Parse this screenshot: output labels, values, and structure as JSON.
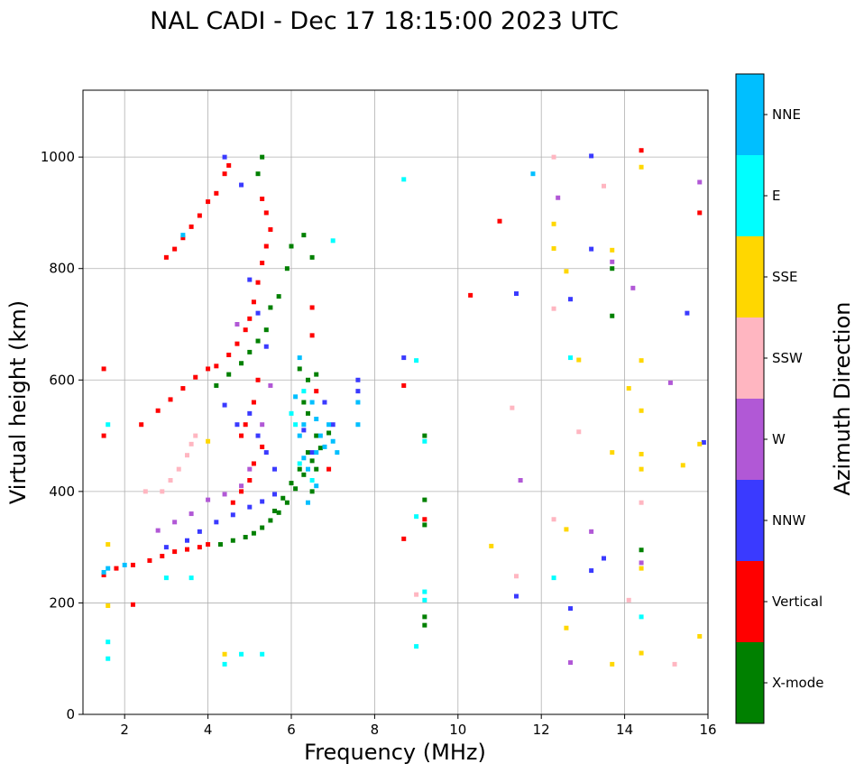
{
  "chart_data": {
    "type": "scatter",
    "title": "NAL CADI - Dec 17 18:15:00 2023 UTC",
    "xlabel": "Frequency (MHz)",
    "ylabel": "Virtual height (km)",
    "xlim": [
      1,
      16
    ],
    "ylim": [
      0,
      1120
    ],
    "xticks": [
      2,
      4,
      6,
      8,
      10,
      12,
      14,
      16
    ],
    "yticks": [
      0,
      200,
      400,
      600,
      800,
      1000
    ],
    "grid": true,
    "colorbar": {
      "label": "Azimuth Direction",
      "categories": [
        {
          "name": "X-mode",
          "color": "#008000"
        },
        {
          "name": "Vertical",
          "color": "#ff0000"
        },
        {
          "name": "NNW",
          "color": "#3a3aff"
        },
        {
          "name": "W",
          "color": "#b158d6"
        },
        {
          "name": "SSW",
          "color": "#ffb6c1"
        },
        {
          "name": "SSE",
          "color": "#ffd700"
        },
        {
          "name": "E",
          "color": "#00ffff"
        },
        {
          "name": "NNE",
          "color": "#00bfff"
        }
      ]
    },
    "series": [
      {
        "name": "X-mode",
        "points": [
          [
            4.3,
            305
          ],
          [
            4.6,
            312
          ],
          [
            4.9,
            318
          ],
          [
            5.1,
            325
          ],
          [
            5.3,
            335
          ],
          [
            5.5,
            348
          ],
          [
            5.7,
            362
          ],
          [
            5.9,
            380
          ],
          [
            6.1,
            405
          ],
          [
            6.3,
            430
          ],
          [
            6.5,
            455
          ],
          [
            6.7,
            478
          ],
          [
            6.9,
            505
          ],
          [
            5.6,
            365
          ],
          [
            5.8,
            388
          ],
          [
            6.0,
            415
          ],
          [
            6.2,
            440
          ],
          [
            6.4,
            470
          ],
          [
            6.6,
            500
          ],
          [
            6.5,
            400
          ],
          [
            6.6,
            440
          ],
          [
            6.4,
            540
          ],
          [
            4.2,
            590
          ],
          [
            4.5,
            610
          ],
          [
            4.8,
            630
          ],
          [
            5.0,
            650
          ],
          [
            5.2,
            670
          ],
          [
            5.4,
            690
          ],
          [
            5.5,
            730
          ],
          [
            5.7,
            750
          ],
          [
            5.9,
            800
          ],
          [
            6.0,
            840
          ],
          [
            6.3,
            860
          ],
          [
            6.5,
            820
          ],
          [
            5.2,
            970
          ],
          [
            5.3,
            1000
          ],
          [
            9.2,
            500
          ],
          [
            9.2,
            385
          ],
          [
            9.2,
            340
          ],
          [
            9.2,
            175
          ],
          [
            9.2,
            160
          ],
          [
            13.7,
            715
          ],
          [
            13.7,
            800
          ],
          [
            14.4,
            295
          ],
          [
            6.3,
            560
          ],
          [
            6.6,
            610
          ],
          [
            6.2,
            620
          ],
          [
            6.4,
            600
          ]
        ]
      },
      {
        "name": "Vertical",
        "points": [
          [
            1.5,
            250
          ],
          [
            1.8,
            262
          ],
          [
            2.2,
            268
          ],
          [
            2.6,
            276
          ],
          [
            2.9,
            284
          ],
          [
            3.2,
            292
          ],
          [
            3.5,
            296
          ],
          [
            3.8,
            300
          ],
          [
            4.0,
            305
          ],
          [
            3.0,
            820
          ],
          [
            3.2,
            835
          ],
          [
            3.4,
            855
          ],
          [
            3.6,
            875
          ],
          [
            3.8,
            895
          ],
          [
            4.0,
            920
          ],
          [
            4.2,
            935
          ],
          [
            4.4,
            970
          ],
          [
            4.5,
            985
          ],
          [
            2.4,
            520
          ],
          [
            2.8,
            545
          ],
          [
            3.1,
            565
          ],
          [
            3.4,
            585
          ],
          [
            3.7,
            605
          ],
          [
            4.0,
            620
          ],
          [
            4.2,
            625
          ],
          [
            4.5,
            645
          ],
          [
            4.7,
            665
          ],
          [
            4.9,
            690
          ],
          [
            5.0,
            710
          ],
          [
            5.1,
            740
          ],
          [
            5.2,
            775
          ],
          [
            5.3,
            810
          ],
          [
            5.4,
            840
          ],
          [
            5.5,
            870
          ],
          [
            5.4,
            900
          ],
          [
            5.3,
            925
          ],
          [
            4.8,
            500
          ],
          [
            4.9,
            520
          ],
          [
            5.1,
            450
          ],
          [
            5.3,
            480
          ],
          [
            5.1,
            560
          ],
          [
            5.2,
            600
          ],
          [
            4.6,
            380
          ],
          [
            4.8,
            400
          ],
          [
            5.0,
            420
          ],
          [
            1.5,
            500
          ],
          [
            1.5,
            620
          ],
          [
            2.2,
            197
          ],
          [
            6.5,
            730
          ],
          [
            6.5,
            680
          ],
          [
            6.6,
            580
          ],
          [
            6.9,
            440
          ],
          [
            8.7,
            590
          ],
          [
            8.7,
            315
          ],
          [
            9.2,
            350
          ],
          [
            10.3,
            752
          ],
          [
            11.0,
            885
          ],
          [
            14.4,
            1012
          ],
          [
            15.8,
            900
          ]
        ]
      },
      {
        "name": "NNW",
        "points": [
          [
            3.0,
            300
          ],
          [
            3.5,
            312
          ],
          [
            3.8,
            328
          ],
          [
            4.2,
            345
          ],
          [
            4.6,
            358
          ],
          [
            5.0,
            372
          ],
          [
            5.3,
            382
          ],
          [
            5.6,
            395
          ],
          [
            4.4,
            555
          ],
          [
            4.7,
            520
          ],
          [
            5.0,
            540
          ],
          [
            5.2,
            500
          ],
          [
            5.4,
            470
          ],
          [
            5.6,
            440
          ],
          [
            4.4,
            1000
          ],
          [
            4.8,
            950
          ],
          [
            5.0,
            780
          ],
          [
            5.2,
            720
          ],
          [
            5.4,
            660
          ],
          [
            6.3,
            510
          ],
          [
            6.5,
            470
          ],
          [
            6.8,
            560
          ],
          [
            7.0,
            520
          ],
          [
            7.6,
            580
          ],
          [
            7.6,
            600
          ],
          [
            8.7,
            640
          ],
          [
            11.4,
            755
          ],
          [
            11.4,
            212
          ],
          [
            12.7,
            745
          ],
          [
            12.7,
            190
          ],
          [
            13.2,
            835
          ],
          [
            13.2,
            258
          ],
          [
            13.2,
            1002
          ],
          [
            13.5,
            280
          ],
          [
            15.5,
            720
          ],
          [
            15.9,
            488
          ]
        ]
      },
      {
        "name": "W",
        "points": [
          [
            2.8,
            330
          ],
          [
            3.2,
            345
          ],
          [
            3.6,
            360
          ],
          [
            4.0,
            385
          ],
          [
            4.4,
            395
          ],
          [
            4.8,
            410
          ],
          [
            5.0,
            440
          ],
          [
            5.3,
            520
          ],
          [
            5.5,
            590
          ],
          [
            4.7,
            700
          ],
          [
            13.7,
            812
          ],
          [
            14.2,
            765
          ],
          [
            14.4,
            272
          ],
          [
            12.4,
            927
          ],
          [
            12.7,
            93
          ],
          [
            13.2,
            328
          ],
          [
            15.1,
            595
          ],
          [
            15.8,
            955
          ],
          [
            11.5,
            420
          ]
        ]
      },
      {
        "name": "SSW",
        "points": [
          [
            2.9,
            400
          ],
          [
            3.1,
            420
          ],
          [
            3.3,
            440
          ],
          [
            3.5,
            465
          ],
          [
            3.6,
            485
          ],
          [
            3.7,
            500
          ],
          [
            2.5,
            400
          ],
          [
            12.3,
            1000
          ],
          [
            12.3,
            350
          ],
          [
            12.3,
            728
          ],
          [
            13.5,
            948
          ],
          [
            12.9,
            507
          ],
          [
            14.1,
            205
          ],
          [
            14.4,
            380
          ],
          [
            15.2,
            90
          ],
          [
            11.3,
            550
          ],
          [
            11.4,
            248
          ],
          [
            9.0,
            215
          ]
        ]
      },
      {
        "name": "SSE",
        "points": [
          [
            1.6,
            305
          ],
          [
            1.6,
            195
          ],
          [
            4.0,
            490
          ],
          [
            4.4,
            108
          ],
          [
            12.3,
            880
          ],
          [
            12.3,
            836
          ],
          [
            12.6,
            795
          ],
          [
            12.6,
            332
          ],
          [
            12.6,
            155
          ],
          [
            12.9,
            636
          ],
          [
            13.7,
            833
          ],
          [
            13.7,
            470
          ],
          [
            13.7,
            90
          ],
          [
            14.1,
            585
          ],
          [
            14.4,
            982
          ],
          [
            14.4,
            635
          ],
          [
            14.4,
            545
          ],
          [
            14.4,
            467
          ],
          [
            14.4,
            440
          ],
          [
            14.4,
            262
          ],
          [
            14.4,
            110
          ],
          [
            15.4,
            447
          ],
          [
            15.8,
            140
          ],
          [
            15.8,
            485
          ],
          [
            10.8,
            302
          ]
        ]
      },
      {
        "name": "E",
        "points": [
          [
            1.6,
            130
          ],
          [
            1.6,
            100
          ],
          [
            1.6,
            520
          ],
          [
            3.0,
            245
          ],
          [
            3.6,
            245
          ],
          [
            4.4,
            90
          ],
          [
            4.8,
            108
          ],
          [
            5.3,
            108
          ],
          [
            8.7,
            960
          ],
          [
            9.0,
            635
          ],
          [
            9.0,
            355
          ],
          [
            9.0,
            122
          ],
          [
            9.2,
            490
          ],
          [
            9.2,
            220
          ],
          [
            9.2,
            205
          ],
          [
            7.0,
            850
          ],
          [
            12.3,
            245
          ],
          [
            12.7,
            640
          ],
          [
            14.4,
            175
          ],
          [
            6.1,
            520
          ],
          [
            6.3,
            580
          ],
          [
            6.5,
            420
          ],
          [
            6.2,
            450
          ],
          [
            6.0,
            540
          ]
        ]
      },
      {
        "name": "NNE",
        "points": [
          [
            1.5,
            255
          ],
          [
            1.6,
            262
          ],
          [
            2.0,
            268
          ],
          [
            6.1,
            570
          ],
          [
            6.3,
            520
          ],
          [
            6.3,
            460
          ],
          [
            6.4,
            440
          ],
          [
            6.4,
            380
          ],
          [
            6.6,
            530
          ],
          [
            6.6,
            470
          ],
          [
            6.6,
            410
          ],
          [
            6.7,
            500
          ],
          [
            6.8,
            480
          ],
          [
            6.9,
            520
          ],
          [
            7.0,
            490
          ],
          [
            7.1,
            470
          ],
          [
            6.2,
            500
          ],
          [
            6.5,
            560
          ],
          [
            6.2,
            640
          ],
          [
            7.6,
            520
          ],
          [
            7.6,
            560
          ],
          [
            11.8,
            970
          ],
          [
            3.4,
            860
          ]
        ]
      }
    ]
  }
}
